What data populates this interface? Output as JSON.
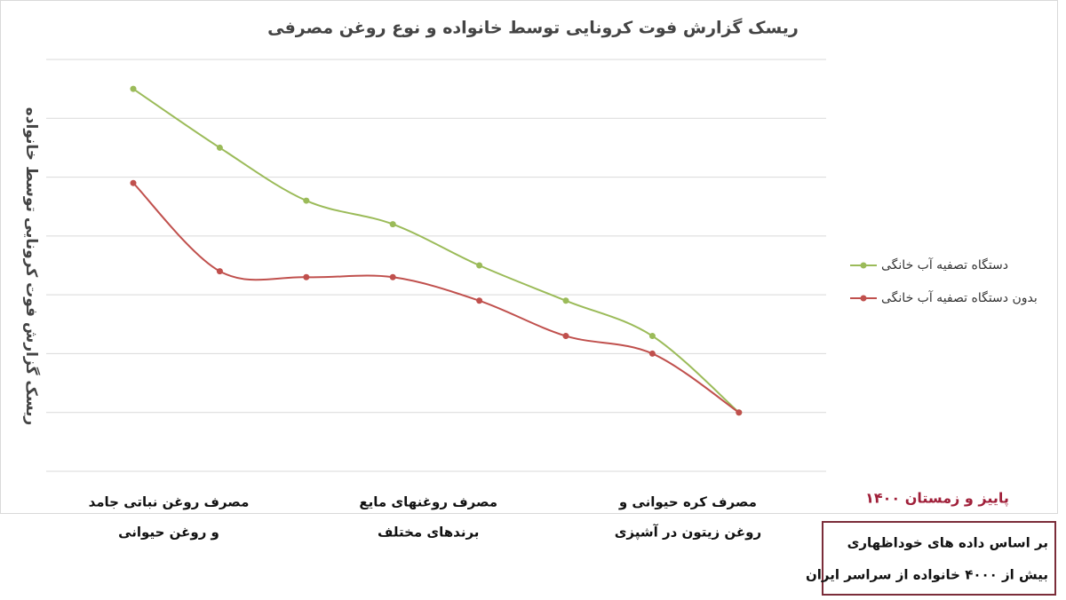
{
  "chart_data": {
    "type": "line",
    "title": "ریسک گزارش فوت کرونایی توسط خانواده و نوع روغن مصرفی",
    "y_label": "ریسک گزارش فوت کرونایی توسط خانواده",
    "categories": [
      [
        "مصرف روغن نباتی جامد",
        "و روغن حیوانی"
      ],
      null,
      null,
      [
        "مصرف روغنهای مایع",
        "برندهای مختلف"
      ],
      null,
      null,
      [
        "مصرف کره حیوانی و",
        "روغن زیتون در آشپزی"
      ],
      null
    ],
    "series": [
      {
        "name": "دستگاه تصفیه آب خانگی",
        "color": "#9bbb59",
        "values": [
          6.5,
          5.5,
          4.6,
          4.2,
          3.5,
          2.9,
          2.3,
          1.0
        ]
      },
      {
        "name": "بدون دستگاه تصفیه آب خانگی",
        "color": "#c0504d",
        "values": [
          4.9,
          3.4,
          3.3,
          3.3,
          2.9,
          2.3,
          2.0,
          1.0
        ]
      }
    ],
    "ylim": [
      0,
      7
    ],
    "yticks": [
      0,
      1,
      2,
      3,
      4,
      5,
      6,
      7
    ],
    "grid": true,
    "smooth": true,
    "legend": "right",
    "season_note": "پاییز و زمستان ۱۴۰۰",
    "source_note": [
      "بر اساس داده های خوداظهاری",
      "بیش از ۴۰۰۰ خانواده از سراسر ایران"
    ]
  }
}
